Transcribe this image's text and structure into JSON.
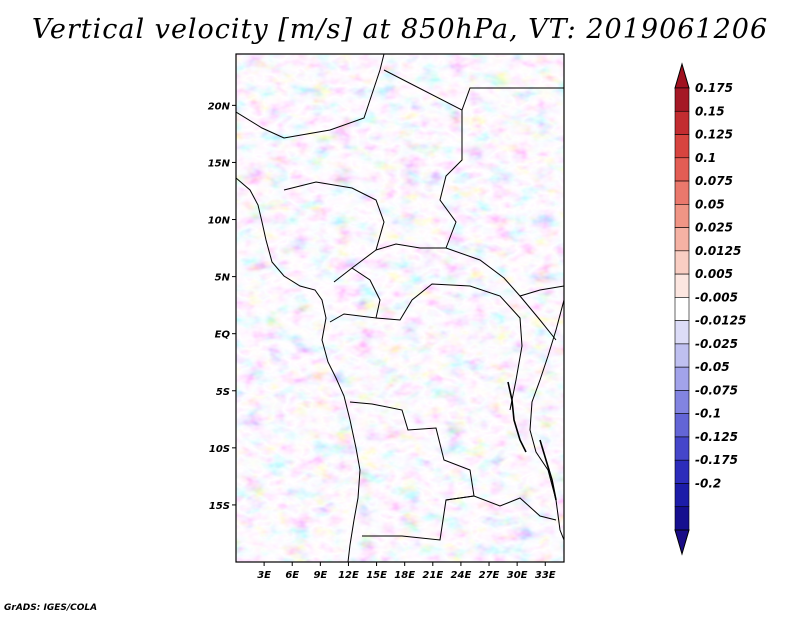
{
  "title": "Vertical velocity [m/s] at 850hPa, VT: 2019061206",
  "credit": "GrADS: IGES/COLA",
  "map": {
    "lon_range": [
      0,
      35
    ],
    "lat_range": [
      -20,
      24.5
    ],
    "lon_ticks": [
      3,
      6,
      9,
      12,
      15,
      18,
      21,
      24,
      27,
      30,
      33
    ],
    "lon_tick_labels": [
      "3E",
      "6E",
      "9E",
      "12E",
      "15E",
      "18E",
      "21E",
      "24E",
      "27E",
      "30E",
      "33E"
    ],
    "lat_ticks": [
      20,
      15,
      10,
      5,
      0,
      -5,
      -10,
      -15
    ],
    "lat_tick_labels": [
      "20N",
      "15N",
      "10N",
      "5N",
      "EQ",
      "5S",
      "10S",
      "15S"
    ]
  },
  "colorbar": {
    "labels": [
      "0.175",
      "0.15",
      "0.125",
      "0.1",
      "0.075",
      "0.05",
      "0.025",
      "0.0125",
      "0.005",
      "-0.005",
      "-0.0125",
      "-0.025",
      "-0.05",
      "-0.075",
      "-0.1",
      "-0.125",
      "-0.175",
      "-0.2"
    ],
    "colors": [
      "#a51826",
      "#c22c30",
      "#d7443f",
      "#e35d54",
      "#ea786c",
      "#f09585",
      "#f5b2a4",
      "#f9cec3",
      "#fce6e0",
      "#ffffff",
      "#dcdcf7",
      "#bfc0f0",
      "#a2a3ea",
      "#8284e1",
      "#6365d6",
      "#4546ca",
      "#2c2cbb",
      "#1c1ca8",
      "#160f8f"
    ],
    "lower_arrow_color": "#1a0d87",
    "upper_arrow_color": "#a0111f"
  }
}
